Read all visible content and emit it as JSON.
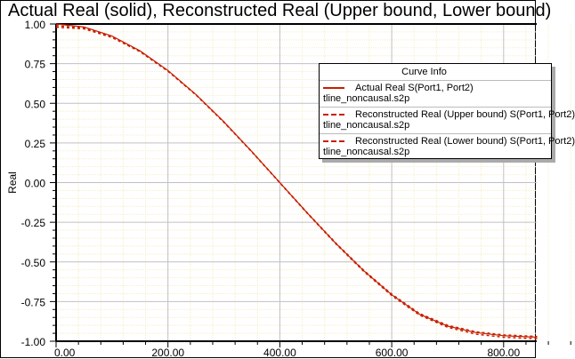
{
  "chart_data": {
    "type": "line",
    "title": "Actual Real (solid), Reconstructed Real (Upper bound, Lower bound)",
    "xlabel": "",
    "ylabel": "Real",
    "xlim": [
      0,
      860
    ],
    "ylim": [
      -1.0,
      1.0
    ],
    "x_ticks": [
      "0.00",
      "200.00",
      "400.00",
      "600.00",
      "800.00"
    ],
    "y_ticks": [
      "1.00",
      "0.75",
      "0.50",
      "0.25",
      "0.00",
      "-0.25",
      "-0.50",
      "-0.75",
      "-1.00"
    ],
    "grid": true,
    "legend_position": "top-right",
    "legend_title": "Curve Info",
    "x": [
      0,
      50,
      100,
      150,
      200,
      250,
      300,
      350,
      400,
      450,
      500,
      550,
      600,
      650,
      700,
      750,
      800,
      860
    ],
    "series": [
      {
        "name": "Actual Real S(Port1, Port2)",
        "file": "tline_noncausal.s2p",
        "style": "solid",
        "color": "#c81e00",
        "values": [
          1.0,
          0.981,
          0.924,
          0.831,
          0.707,
          0.556,
          0.383,
          0.195,
          0.0,
          -0.195,
          -0.383,
          -0.556,
          -0.707,
          -0.83,
          -0.905,
          -0.945,
          -0.965,
          -0.975
        ]
      },
      {
        "name": "Reconstructed Real (Upper bound) S(Port1, Port2)",
        "file": "tline_noncausal.s2p",
        "style": "dashed",
        "color": "#c81e00",
        "values": [
          0.99,
          0.975,
          0.92,
          0.828,
          0.705,
          0.555,
          0.382,
          0.195,
          0.0,
          -0.194,
          -0.381,
          -0.553,
          -0.703,
          -0.826,
          -0.9,
          -0.94,
          -0.96,
          -0.97
        ]
      },
      {
        "name": "Reconstructed Real (Lower bound) S(Port1, Port2)",
        "file": "tline_noncausal.s2p",
        "style": "dashed",
        "color": "#c81e00",
        "values": [
          0.98,
          0.97,
          0.915,
          0.825,
          0.702,
          0.553,
          0.38,
          0.193,
          -0.002,
          -0.197,
          -0.386,
          -0.56,
          -0.712,
          -0.836,
          -0.912,
          -0.955,
          -0.975,
          -0.985
        ]
      }
    ]
  }
}
